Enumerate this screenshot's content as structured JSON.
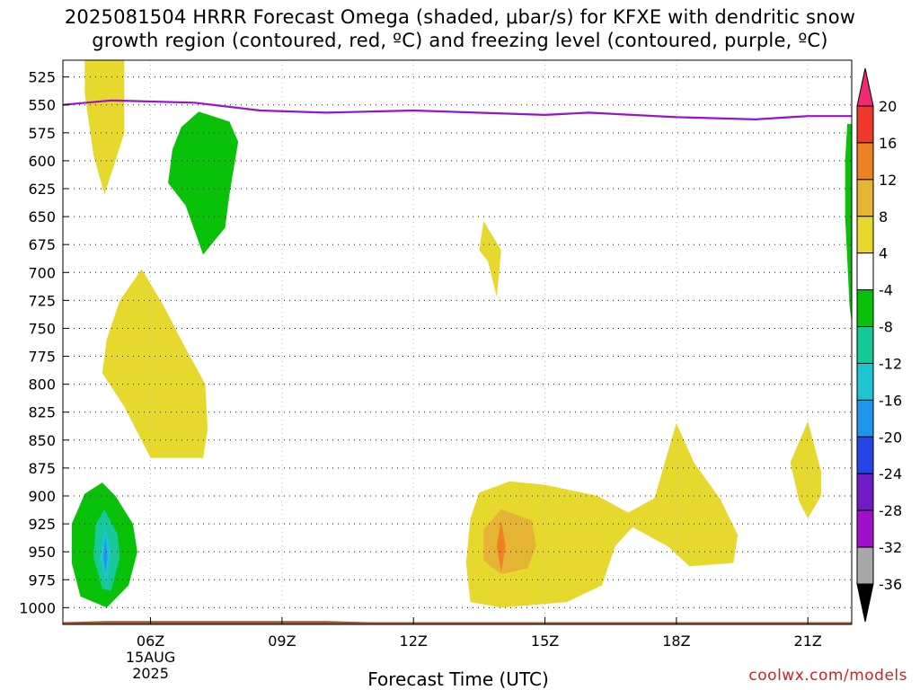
{
  "title_line1": "2025081504 HRRR Forecast Omega (shaded, μbar/s) for KFXE with dendritic snow",
  "title_line2": "growth region (contoured, red, ºC) and freezing level (contoured, purple, ºC)",
  "xlabel": "Forecast Time (UTC)",
  "credit": "coolwx.com/models",
  "chart_data": {
    "type": "contour",
    "y_axis": {
      "label": "",
      "inverted": true,
      "ticks": [
        525,
        550,
        575,
        600,
        625,
        650,
        675,
        700,
        725,
        750,
        775,
        800,
        825,
        850,
        875,
        900,
        925,
        950,
        975,
        1000
      ],
      "range": [
        510,
        1015
      ]
    },
    "x_axis": {
      "range_hours": [
        4,
        22
      ],
      "ticks": [
        {
          "hour": 6,
          "label": "06Z",
          "sub": [
            "15AUG",
            "2025"
          ]
        },
        {
          "hour": 9,
          "label": "09Z",
          "sub": []
        },
        {
          "hour": 12,
          "label": "12Z",
          "sub": []
        },
        {
          "hour": 15,
          "label": "15Z",
          "sub": []
        },
        {
          "hour": 18,
          "label": "18Z",
          "sub": []
        },
        {
          "hour": 21,
          "label": "21Z",
          "sub": []
        }
      ]
    },
    "grid": true,
    "colorbar": {
      "labels": [
        "20",
        "16",
        "12",
        "8",
        "4",
        "-4",
        "-8",
        "-12",
        "-16",
        "-20",
        "-24",
        "-28",
        "-32",
        "-36"
      ],
      "colors": [
        "#ee2b74",
        "#ef3a2b",
        "#ec8126",
        "#e6b434",
        "#e7d82e",
        "#ffffff",
        "#0ac10a",
        "#17c899",
        "#1ec5d1",
        "#1f96ec",
        "#2545e6",
        "#6f1bc7",
        "#a00fca",
        "#a8a8a8",
        "#000000"
      ]
    },
    "freezing_level": {
      "color": "#9a12c9",
      "points": [
        [
          4.0,
          550
        ],
        [
          5.1,
          546
        ],
        [
          7.0,
          548
        ],
        [
          8.5,
          555
        ],
        [
          10,
          557
        ],
        [
          12,
          555
        ],
        [
          15,
          559
        ],
        [
          16,
          557
        ],
        [
          18,
          561
        ],
        [
          19.8,
          563
        ],
        [
          21,
          560
        ],
        [
          22,
          560
        ]
      ]
    },
    "omega_regions": [
      {
        "value_min": 4,
        "color": "#e7d82e",
        "points": [
          [
            4.5,
            510
          ],
          [
            5.4,
            510
          ],
          [
            5.4,
            575
          ],
          [
            5.2,
            600
          ],
          [
            4.95,
            630
          ],
          [
            4.7,
            595
          ],
          [
            4.5,
            540
          ]
        ]
      },
      {
        "value_min": 4,
        "color": "#e7d82e",
        "points": [
          [
            5.8,
            697
          ],
          [
            6.3,
            730
          ],
          [
            6.8,
            768
          ],
          [
            7.25,
            800
          ],
          [
            7.3,
            840
          ],
          [
            7.2,
            866
          ],
          [
            6.0,
            866
          ],
          [
            5.4,
            820
          ],
          [
            4.9,
            790
          ],
          [
            5.0,
            760
          ],
          [
            5.3,
            725
          ]
        ]
      },
      {
        "value_min": 4,
        "color": "#e7d82e",
        "points": [
          [
            13.6,
            654
          ],
          [
            14.0,
            680
          ],
          [
            13.9,
            722
          ],
          [
            13.7,
            690
          ],
          [
            13.5,
            680
          ]
        ]
      },
      {
        "value_min": 4,
        "color": "#e7d82e",
        "points": [
          [
            13.5,
            897
          ],
          [
            14.2,
            887
          ],
          [
            15.0,
            890
          ],
          [
            16.2,
            900
          ],
          [
            16.9,
            915
          ],
          [
            17.5,
            902
          ],
          [
            17.9,
            848
          ],
          [
            18.0,
            835
          ],
          [
            18.4,
            870
          ],
          [
            19.0,
            903
          ],
          [
            19.4,
            935
          ],
          [
            19.3,
            960
          ],
          [
            18.3,
            963
          ],
          [
            17.8,
            945
          ],
          [
            17.0,
            928
          ],
          [
            16.6,
            945
          ],
          [
            16.3,
            980
          ],
          [
            15.5,
            995
          ],
          [
            14.0,
            1000
          ],
          [
            13.3,
            995
          ],
          [
            13.2,
            960
          ],
          [
            13.3,
            920
          ]
        ]
      },
      {
        "value_min": 4,
        "color": "#e7d82e",
        "points": [
          [
            21.0,
            833
          ],
          [
            21.3,
            878
          ],
          [
            21.3,
            900
          ],
          [
            21.0,
            920
          ],
          [
            20.8,
            905
          ],
          [
            20.6,
            870
          ]
        ]
      },
      {
        "value_min": 8,
        "color": "#e6b434",
        "points": [
          [
            14.0,
            912
          ],
          [
            14.7,
            922
          ],
          [
            14.8,
            945
          ],
          [
            14.6,
            965
          ],
          [
            14.0,
            970
          ],
          [
            13.6,
            958
          ],
          [
            13.6,
            930
          ]
        ]
      },
      {
        "value_min": 12,
        "color": "#ec8126",
        "points": [
          [
            14.0,
            922
          ],
          [
            14.1,
            945
          ],
          [
            14.0,
            968
          ],
          [
            13.9,
            945
          ]
        ]
      },
      {
        "value_min": -8,
        "color": "#0ac10a",
        "points": [
          [
            7.1,
            556
          ],
          [
            7.8,
            565
          ],
          [
            8.0,
            583
          ],
          [
            7.8,
            630
          ],
          [
            7.7,
            660
          ],
          [
            7.2,
            684
          ],
          [
            6.8,
            640
          ],
          [
            6.4,
            620
          ],
          [
            6.5,
            590
          ],
          [
            6.7,
            570
          ]
        ]
      },
      {
        "value_min": -8,
        "color": "#0ac10a",
        "points": [
          [
            4.9,
            888
          ],
          [
            5.2,
            900
          ],
          [
            5.6,
            925
          ],
          [
            5.7,
            950
          ],
          [
            5.5,
            980
          ],
          [
            5.0,
            1000
          ],
          [
            4.4,
            990
          ],
          [
            4.2,
            960
          ],
          [
            4.2,
            925
          ],
          [
            4.5,
            898
          ]
        ]
      },
      {
        "value_min": -8,
        "color": "#0ac10a",
        "points": [
          [
            21.9,
            567
          ],
          [
            22.05,
            567
          ],
          [
            22.05,
            760
          ],
          [
            21.95,
            730
          ],
          [
            21.85,
            650
          ],
          [
            21.85,
            600
          ]
        ]
      },
      {
        "value_min": -12,
        "color": "#17c899",
        "points": [
          [
            4.95,
            912
          ],
          [
            5.25,
            935
          ],
          [
            5.3,
            955
          ],
          [
            5.1,
            985
          ],
          [
            4.9,
            983
          ],
          [
            4.7,
            955
          ],
          [
            4.75,
            925
          ]
        ]
      },
      {
        "value_min": -16,
        "color": "#1ec5d1",
        "points": [
          [
            4.95,
            925
          ],
          [
            5.1,
            950
          ],
          [
            5.0,
            980
          ],
          [
            4.85,
            955
          ]
        ]
      },
      {
        "value_min": -20,
        "color": "#1f96ec",
        "points": [
          [
            4.97,
            935
          ],
          [
            5.02,
            955
          ],
          [
            4.97,
            968
          ],
          [
            4.92,
            955
          ]
        ]
      }
    ],
    "terrain": {
      "color": "#a0522d",
      "points": [
        [
          4.0,
          1013
        ],
        [
          5.0,
          1012
        ],
        [
          10.0,
          1012
        ],
        [
          11.0,
          1013
        ],
        [
          22.0,
          1013
        ],
        [
          22.0,
          1016
        ],
        [
          4.0,
          1016
        ]
      ]
    }
  }
}
